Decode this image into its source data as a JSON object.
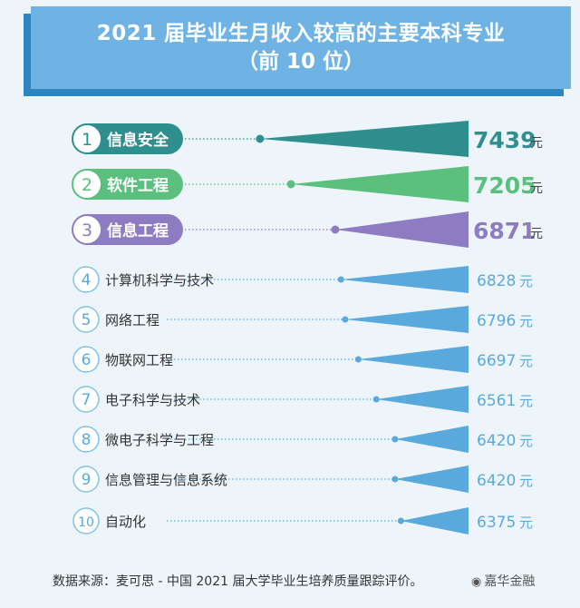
{
  "header": {
    "title_line1": "2021 届毕业生月收入较高的主要本科专业",
    "title_line2": "（前 10 位）"
  },
  "chart_data": {
    "type": "bar",
    "categories": [
      "信息安全",
      "软件工程",
      "信息工程",
      "计算机科学与技术",
      "网络工程",
      "物联网工程",
      "电子科学与技术",
      "微电子科学与工程",
      "信息管理与信息系统",
      "自动化"
    ],
    "ranks": [
      "1",
      "2",
      "3",
      "4",
      "5",
      "6",
      "7",
      "8",
      "9",
      "10"
    ],
    "values": [
      7439,
      7205,
      6871,
      6828,
      6796,
      6697,
      6561,
      6420,
      6420,
      6375
    ],
    "value_labels": [
      "7439",
      "7205",
      "6871",
      "6828",
      "6796",
      "6697",
      "6561",
      "6420",
      "6420",
      "6375"
    ],
    "unit": "元",
    "highlight_colors": [
      "#2f8f8f",
      "#5bbf7e",
      "#8e7cc3"
    ],
    "default_color": "#5aa9dd"
  },
  "footer": {
    "source": "数据来源：麦可思 - 中国 2021 届大学毕业生培养质量跟踪评价。",
    "watermark": "嘉华金融",
    "watermark_icon": "wechat-icon"
  }
}
